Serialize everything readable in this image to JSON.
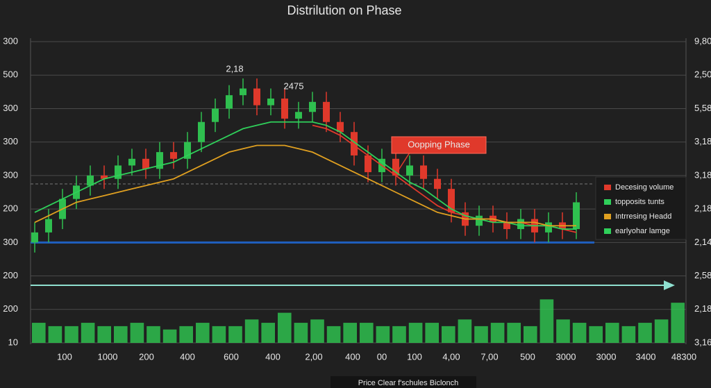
{
  "chart_data": {
    "type": "candlestick",
    "title": "Distrilution on Phase",
    "caption": "Price Clear f'schules Biclonch",
    "up_color": "#2fbf4f",
    "down_color": "#e0392b",
    "ylim": [
      0,
      9
    ],
    "yticks": [
      {
        "value": 0,
        "label": "10"
      },
      {
        "value": 1,
        "label": "200"
      },
      {
        "value": 2,
        "label": "200"
      },
      {
        "value": 3,
        "label": "300"
      },
      {
        "value": 4,
        "label": "200"
      },
      {
        "value": 5,
        "label": "300"
      },
      {
        "value": 6,
        "label": "300"
      },
      {
        "value": 7,
        "label": "300"
      },
      {
        "value": 8,
        "label": "500"
      },
      {
        "value": 9,
        "label": "300"
      }
    ],
    "y2lim": [
      0,
      9
    ],
    "y2ticks": [
      {
        "value": 0,
        "label": "3,16"
      },
      {
        "value": 1,
        "label": "2,18"
      },
      {
        "value": 2,
        "label": "2,58"
      },
      {
        "value": 3,
        "label": "2,14"
      },
      {
        "value": 4,
        "label": "2,18"
      },
      {
        "value": 5,
        "label": "3,18"
      },
      {
        "value": 6,
        "label": "3,18"
      },
      {
        "value": 7,
        "label": "5,58"
      },
      {
        "value": 8,
        "label": "2,50"
      },
      {
        "value": 9,
        "label": "9,80"
      }
    ],
    "grid": true,
    "x_labels": [
      "100",
      "1000",
      "200",
      "400",
      "600",
      "400",
      "2,00",
      "400",
      "00",
      "100",
      "4,00",
      "7,00",
      "500",
      "3000",
      "3000",
      "3400",
      "48300"
    ],
    "open": [
      3.0,
      3.3,
      3.7,
      4.3,
      4.7,
      5.0,
      4.9,
      5.3,
      5.5,
      5.2,
      5.7,
      5.5,
      6.0,
      6.6,
      7.0,
      7.4,
      7.6,
      7.1,
      7.3,
      6.7,
      6.9,
      7.2,
      6.6,
      6.3,
      5.6,
      5.1,
      5.5,
      5.0,
      5.3,
      4.9,
      4.6,
      3.9,
      3.5,
      3.8,
      3.6,
      3.4,
      3.7,
      3.3,
      3.6,
      3.4
    ],
    "high": [
      3.6,
      4.0,
      4.6,
      5.0,
      5.3,
      5.3,
      5.6,
      5.8,
      5.8,
      6.0,
      6.0,
      6.3,
      6.9,
      7.3,
      7.7,
      7.9,
      7.9,
      7.6,
      7.6,
      7.2,
      7.5,
      7.5,
      6.9,
      6.6,
      5.9,
      5.8,
      5.8,
      5.6,
      5.6,
      5.2,
      4.9,
      4.2,
      4.1,
      4.1,
      3.9,
      4.0,
      4.0,
      3.9,
      3.9,
      4.5
    ],
    "low": [
      2.7,
      3.0,
      3.4,
      4.0,
      4.4,
      4.6,
      4.6,
      5.0,
      4.9,
      4.9,
      5.2,
      5.2,
      5.7,
      6.3,
      6.7,
      7.1,
      6.8,
      6.8,
      6.4,
      6.4,
      6.6,
      6.3,
      6.0,
      5.3,
      4.8,
      4.8,
      4.7,
      4.7,
      4.6,
      4.3,
      3.6,
      3.2,
      3.2,
      3.3,
      3.1,
      3.1,
      3.0,
      3.0,
      3.1,
      3.1
    ],
    "close": [
      3.3,
      3.7,
      4.3,
      4.7,
      5.0,
      4.9,
      5.3,
      5.5,
      5.2,
      5.7,
      5.5,
      6.0,
      6.6,
      7.0,
      7.4,
      7.6,
      7.1,
      7.3,
      6.7,
      6.9,
      7.2,
      6.6,
      6.3,
      5.6,
      5.1,
      5.5,
      5.0,
      5.3,
      4.9,
      4.6,
      3.9,
      3.5,
      3.8,
      3.6,
      3.4,
      3.7,
      3.3,
      3.6,
      3.4,
      4.2
    ],
    "volume_color": "#2fbf4f",
    "volume": [
      0.6,
      0.5,
      0.5,
      0.6,
      0.5,
      0.5,
      0.6,
      0.5,
      0.4,
      0.5,
      0.6,
      0.5,
      0.5,
      0.7,
      0.6,
      0.9,
      0.6,
      0.7,
      0.5,
      0.6,
      0.6,
      0.5,
      0.5,
      0.6,
      0.6,
      0.5,
      0.7,
      0.5,
      0.6,
      0.6,
      0.5,
      1.3,
      0.7,
      0.6,
      0.5,
      0.6,
      0.5,
      0.6,
      0.7,
      1.2
    ],
    "lines": [
      {
        "name": "Decesing volume",
        "color": "#e0392b",
        "values": [
          null,
          null,
          null,
          null,
          null,
          null,
          null,
          null,
          null,
          null,
          null,
          null,
          null,
          null,
          null,
          null,
          null,
          null,
          null,
          null,
          6.5,
          6.4,
          6.2,
          5.9,
          5.6,
          5.3,
          5.0,
          4.7,
          4.4,
          4.1,
          3.9,
          3.8,
          3.7,
          3.7,
          3.6,
          3.6,
          3.5,
          3.5,
          3.4,
          3.3
        ]
      },
      {
        "name": "topposits tunts",
        "color": "#2fd05a",
        "values": [
          3.9,
          4.1,
          4.3,
          4.5,
          4.7,
          4.9,
          5.0,
          5.1,
          5.2,
          5.3,
          5.4,
          5.6,
          5.8,
          6.0,
          6.2,
          6.4,
          6.5,
          6.6,
          6.6,
          6.6,
          6.6,
          6.5,
          6.3,
          6.0,
          5.7,
          5.4,
          5.1,
          4.8,
          4.6,
          4.3,
          4.0,
          3.8,
          3.7,
          3.6,
          3.6,
          3.5,
          3.5,
          3.5,
          3.4,
          3.4
        ]
      },
      {
        "name": "Intrresing Headd",
        "color": "#e0a020",
        "values": [
          3.6,
          3.8,
          4.0,
          4.2,
          4.3,
          4.4,
          4.5,
          4.6,
          4.7,
          4.8,
          4.9,
          5.1,
          5.3,
          5.5,
          5.7,
          5.8,
          5.9,
          5.9,
          5.9,
          5.8,
          5.7,
          5.5,
          5.3,
          5.1,
          4.9,
          4.7,
          4.5,
          4.3,
          4.1,
          3.9,
          3.8,
          3.7,
          3.7,
          3.7,
          3.6,
          3.6,
          3.6,
          3.5,
          3.5,
          3.5
        ]
      }
    ],
    "legend_extra": {
      "name": "earlyohar lamge",
      "color": "#2fd05a"
    },
    "hlines": [
      {
        "value": 3.0,
        "color": "#1f5fbf"
      },
      {
        "value": 4.75,
        "color": "#777777"
      }
    ],
    "annotations": [
      "2,18",
      "2475"
    ],
    "callout": "Oopping Phase"
  }
}
